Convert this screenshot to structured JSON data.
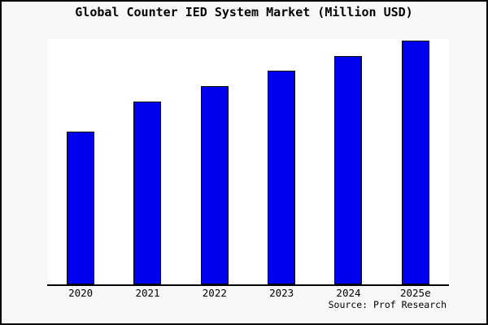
{
  "title": "Global Counter IED System Market (Million USD)",
  "source_note": "Source: Prof Research",
  "colors": {
    "frame_border": "#000000",
    "page_background": "#f8f8f8",
    "plot_background": "#ffffff",
    "axis_line": "#000000",
    "bar_fill": "#0000ee",
    "bar_border": "#000000",
    "text": "#000000"
  },
  "chart_data": {
    "type": "bar",
    "title": "Global Counter IED System Market (Million USD)",
    "units": "Million USD",
    "categories": [
      "2020",
      "2021",
      "2022",
      "2023",
      "2024",
      "2025e"
    ],
    "values": [
      188,
      225,
      244,
      263,
      281,
      300
    ],
    "value_note": "No y-axis ticks or labels are shown in the chart; values are relative bar heights read from pixels (plot height = 302).",
    "xlabel": "",
    "ylabel": "",
    "ylim": [
      0,
      302
    ],
    "grid": false,
    "legend": null,
    "single_series_color": "#0000ee",
    "source_note": "Source: Prof Research"
  }
}
